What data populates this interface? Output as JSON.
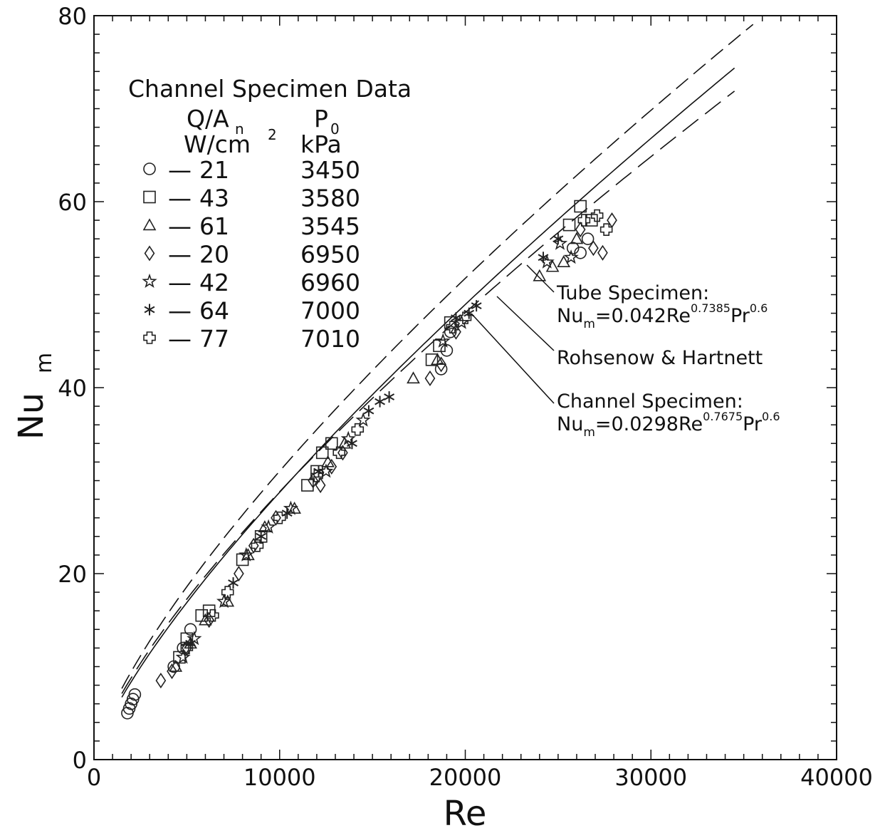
{
  "chart_data": {
    "type": "scatter",
    "title": "",
    "xlabel": "Re",
    "ylabel": "Nu",
    "ylabel_sub": "m",
    "xlim": [
      0,
      40000
    ],
    "ylim": [
      0,
      80
    ],
    "x_ticks": [
      "0",
      "10000",
      "20000",
      "30000",
      "40000"
    ],
    "y_ticks": [
      "0",
      "20",
      "40",
      "60",
      "80"
    ],
    "grid": false,
    "legend": {
      "placement": "top-left",
      "title": "Channel Specimen Data",
      "col1_header": "Q/A",
      "col1_header_sub": "n",
      "col1_units": "W/cm",
      "col1_units_sup": "2",
      "col2_header": "P",
      "col2_header_sub": "0",
      "col2_units": "kPa",
      "dash": "—"
    },
    "series": [
      {
        "marker": "circle",
        "q": "21",
        "p": "3450",
        "points": [
          [
            1800,
            5
          ],
          [
            1900,
            5.5
          ],
          [
            2000,
            6
          ],
          [
            2100,
            6.5
          ],
          [
            2200,
            7
          ],
          [
            4300,
            10
          ],
          [
            4800,
            12
          ],
          [
            5200,
            14
          ],
          [
            18700,
            42
          ],
          [
            19000,
            44
          ],
          [
            19200,
            46
          ],
          [
            25800,
            55
          ],
          [
            26200,
            54.5
          ],
          [
            26600,
            56
          ]
        ]
      },
      {
        "marker": "square",
        "q": "43",
        "p": "3580",
        "points": [
          [
            4600,
            11
          ],
          [
            5000,
            13
          ],
          [
            5800,
            15.5
          ],
          [
            6200,
            16
          ],
          [
            8000,
            21.5
          ],
          [
            9000,
            24
          ],
          [
            11500,
            29.5
          ],
          [
            12000,
            31
          ],
          [
            12300,
            33
          ],
          [
            12800,
            34
          ],
          [
            18200,
            43
          ],
          [
            18600,
            44.5
          ],
          [
            19200,
            47
          ],
          [
            25600,
            57.5
          ],
          [
            26200,
            59.5
          ],
          [
            26800,
            58
          ]
        ]
      },
      {
        "marker": "triangle",
        "q": "61",
        "p": "3545",
        "points": [
          [
            4400,
            10
          ],
          [
            5200,
            12.5
          ],
          [
            6000,
            15
          ],
          [
            7200,
            17
          ],
          [
            8300,
            22
          ],
          [
            9200,
            25
          ],
          [
            10800,
            27
          ],
          [
            12600,
            32
          ],
          [
            13500,
            34
          ],
          [
            17200,
            41
          ],
          [
            18500,
            43
          ],
          [
            24000,
            52
          ],
          [
            24700,
            53
          ],
          [
            25300,
            53.5
          ],
          [
            26000,
            56
          ]
        ]
      },
      {
        "marker": "diamond",
        "q": "20",
        "p": "6950",
        "points": [
          [
            3600,
            8.5
          ],
          [
            4200,
            9.5
          ],
          [
            5000,
            12
          ],
          [
            6200,
            15
          ],
          [
            7800,
            20
          ],
          [
            8600,
            23
          ],
          [
            9800,
            26
          ],
          [
            11800,
            30
          ],
          [
            12200,
            29.5
          ],
          [
            12800,
            31.5
          ],
          [
            13400,
            33
          ],
          [
            18100,
            41
          ],
          [
            18700,
            42.5
          ],
          [
            19500,
            46
          ],
          [
            26200,
            57
          ],
          [
            26900,
            55
          ],
          [
            27400,
            54.5
          ],
          [
            27900,
            58
          ]
        ]
      },
      {
        "marker": "star",
        "q": "42",
        "p": "6960",
        "points": [
          [
            4800,
            11
          ],
          [
            5400,
            13
          ],
          [
            7000,
            17
          ],
          [
            8200,
            22
          ],
          [
            9400,
            25
          ],
          [
            10600,
            27
          ],
          [
            12500,
            31
          ],
          [
            13700,
            34.5
          ],
          [
            14500,
            36.5
          ],
          [
            18800,
            45
          ],
          [
            19800,
            47
          ],
          [
            24400,
            53.5
          ],
          [
            25100,
            55.5
          ],
          [
            25700,
            54
          ]
        ]
      },
      {
        "marker": "asterisk",
        "q": "64",
        "p": "7000",
        "points": [
          [
            5200,
            12.5
          ],
          [
            7500,
            19
          ],
          [
            9000,
            24
          ],
          [
            10400,
            26.5
          ],
          [
            12100,
            31
          ],
          [
            13900,
            34
          ],
          [
            14800,
            37.5
          ],
          [
            15400,
            38.5
          ],
          [
            15900,
            39
          ],
          [
            19500,
            47.5
          ],
          [
            20200,
            48
          ],
          [
            20600,
            48.8
          ],
          [
            24200,
            54
          ],
          [
            25000,
            56
          ]
        ]
      },
      {
        "marker": "cross",
        "q": "77",
        "p": "7010",
        "points": [
          [
            5000,
            12
          ],
          [
            6400,
            15.5
          ],
          [
            7200,
            18
          ],
          [
            8800,
            23
          ],
          [
            10000,
            26
          ],
          [
            12000,
            30.5
          ],
          [
            13200,
            33
          ],
          [
            14200,
            35.5
          ],
          [
            19300,
            46.5
          ],
          [
            20000,
            47.5
          ],
          [
            26400,
            58
          ],
          [
            27100,
            58.5
          ],
          [
            27600,
            57
          ]
        ]
      }
    ],
    "annotations": [
      {
        "id": "tube",
        "line1": "Tube Specimen:",
        "eq_main": "Nu",
        "eq_sub": "m",
        "eq_mid": "=0.042Re",
        "eq_sup1": "0.7385",
        "eq_pr": "Pr",
        "eq_sup2": "0.6"
      },
      {
        "id": "rohsenow",
        "line1": "Rohsenow & Hartnett"
      },
      {
        "id": "channel",
        "line1": "Channel Specimen:",
        "eq_main": "Nu",
        "eq_sub": "m",
        "eq_mid": "=0.0298Re",
        "eq_sup1": "0.7675",
        "eq_pr": "Pr",
        "eq_sup2": "0.6"
      }
    ]
  }
}
